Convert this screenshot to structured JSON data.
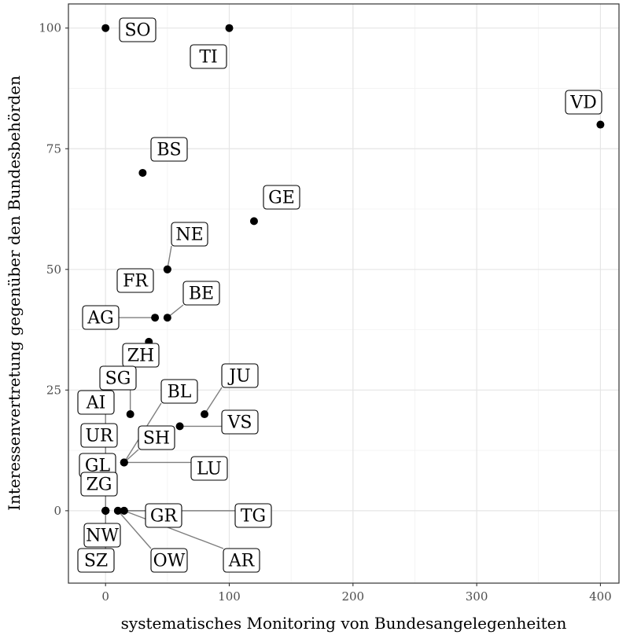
{
  "chart_data": {
    "type": "scatter",
    "title": "",
    "xlabel": "systematisches Monitoring von Bundesangelegenheiten",
    "ylabel": "Interessenvertretung gegenüber den Bundesbehörden",
    "xlim": [
      -30,
      415
    ],
    "ylim": [
      -15,
      105
    ],
    "x_ticks": [
      0,
      100,
      200,
      300,
      400
    ],
    "y_ticks": [
      0,
      25,
      50,
      75,
      100
    ],
    "grid": true,
    "points": [
      {
        "label": "SO",
        "x": 0,
        "y": 100
      },
      {
        "label": "TI",
        "x": 100,
        "y": 100
      },
      {
        "label": "VD",
        "x": 400,
        "y": 80
      },
      {
        "label": "BS",
        "x": 30,
        "y": 70
      },
      {
        "label": "GE",
        "x": 120,
        "y": 60
      },
      {
        "label": "NE",
        "x": 50,
        "y": 50
      },
      {
        "label": "FR",
        "x": 50,
        "y": 50
      },
      {
        "label": "BE",
        "x": 50,
        "y": 40
      },
      {
        "label": "AG",
        "x": 40,
        "y": 40
      },
      {
        "label": "ZH",
        "x": 35,
        "y": 35
      },
      {
        "label": "JU",
        "x": 80,
        "y": 20
      },
      {
        "label": "SG",
        "x": 20,
        "y": 20
      },
      {
        "label": "BL",
        "x": 15,
        "y": 10
      },
      {
        "label": "AI",
        "x": 0,
        "y": 0
      },
      {
        "label": "VS",
        "x": 60,
        "y": 17.5
      },
      {
        "label": "UR",
        "x": 0,
        "y": 0
      },
      {
        "label": "SH",
        "x": 15,
        "y": 10
      },
      {
        "label": "GL",
        "x": 0,
        "y": 0
      },
      {
        "label": "LU",
        "x": 15,
        "y": 10
      },
      {
        "label": "ZG",
        "x": 0,
        "y": 0
      },
      {
        "label": "GR",
        "x": 10,
        "y": 0
      },
      {
        "label": "TG",
        "x": 15,
        "y": 0
      },
      {
        "label": "NW",
        "x": 0,
        "y": 0
      },
      {
        "label": "OW",
        "x": 10,
        "y": 0
      },
      {
        "label": "AR",
        "x": 15,
        "y": 0
      },
      {
        "label": "SZ",
        "x": 0,
        "y": 0
      }
    ]
  }
}
